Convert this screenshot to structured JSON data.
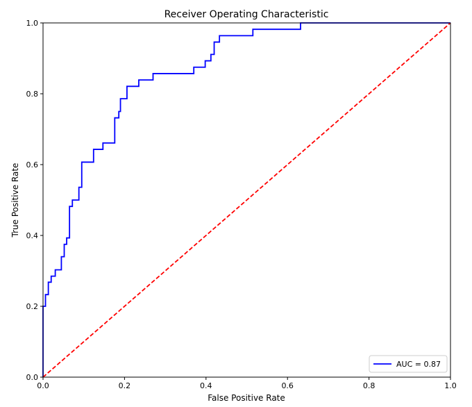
{
  "chart_data": {
    "type": "line",
    "title": "Receiver Operating Characteristic",
    "xlabel": "False Positive Rate",
    "ylabel": "True Positive Rate",
    "xlim": [
      0,
      1
    ],
    "ylim": [
      0,
      1
    ],
    "x_ticks": [
      "0.0",
      "0.2",
      "0.4",
      "0.6",
      "0.8",
      "1.0"
    ],
    "y_ticks": [
      "0.0",
      "0.2",
      "0.4",
      "0.6",
      "0.8",
      "1.0"
    ],
    "grid": false,
    "legend_position": "lower-right",
    "series": [
      {
        "name": "AUC = 0.87",
        "color": "#0000ff",
        "style": "solid",
        "x": [
          0,
          0,
          0.006,
          0.006,
          0.013,
          0.013,
          0.02,
          0.02,
          0.03,
          0.03,
          0.045,
          0.045,
          0.052,
          0.052,
          0.058,
          0.058,
          0.065,
          0.065,
          0.072,
          0.072,
          0.088,
          0.088,
          0.095,
          0.095,
          0.124,
          0.124,
          0.147,
          0.147,
          0.176,
          0.176,
          0.186,
          0.186,
          0.19,
          0.19,
          0.206,
          0.206,
          0.235,
          0.235,
          0.27,
          0.27,
          0.37,
          0.37,
          0.398,
          0.398,
          0.412,
          0.412,
          0.42,
          0.42,
          0.433,
          0.433,
          0.515,
          0.515,
          0.632,
          0.632,
          1
        ],
        "y": [
          0,
          0.2,
          0.2,
          0.233,
          0.233,
          0.268,
          0.268,
          0.285,
          0.285,
          0.303,
          0.303,
          0.34,
          0.34,
          0.375,
          0.375,
          0.393,
          0.393,
          0.482,
          0.482,
          0.5,
          0.5,
          0.536,
          0.536,
          0.607,
          0.607,
          0.643,
          0.643,
          0.661,
          0.661,
          0.732,
          0.732,
          0.75,
          0.75,
          0.786,
          0.786,
          0.821,
          0.821,
          0.839,
          0.839,
          0.857,
          0.857,
          0.875,
          0.875,
          0.893,
          0.893,
          0.911,
          0.911,
          0.946,
          0.946,
          0.964,
          0.964,
          0.982,
          0.982,
          1.0,
          1.0
        ]
      },
      {
        "name": "",
        "color": "#ff0000",
        "style": "dashed",
        "x": [
          0,
          1
        ],
        "y": [
          0,
          1
        ]
      }
    ],
    "legend": [
      {
        "label": "AUC = 0.87",
        "color": "#0000ff"
      }
    ]
  }
}
